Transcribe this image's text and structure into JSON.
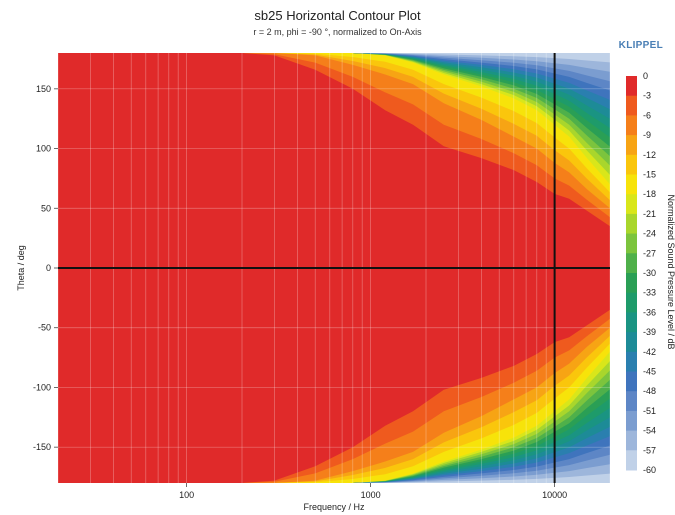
{
  "chart_data": {
    "type": "heatmap",
    "title": "sb25 Horizontal Contour Plot",
    "subtitle": "r = 2 m, phi = -90 °, normalized to On-Axis",
    "brand": "KLIPPEL",
    "xlabel": "Frequency / Hz",
    "ylabel": "Theta / deg",
    "colorbar_label": "Normalized Sound Pressure Level / dB",
    "x_scale": "log",
    "xlim": [
      20,
      20000
    ],
    "ylim": [
      -180,
      180
    ],
    "x_ticks": [
      100,
      1000,
      10000
    ],
    "y_ticks": [
      150,
      100,
      50,
      0,
      -50,
      -100,
      -150
    ],
    "reference_lines": {
      "horizontal_deg": 0,
      "vertical_hz": 10000
    },
    "levels": [
      0,
      -3,
      -6,
      -9,
      -12,
      -15,
      -18,
      -21,
      -24,
      -27,
      -30,
      -33,
      -36,
      -39,
      -42,
      -45,
      -48,
      -51,
      -54,
      -57,
      -60
    ],
    "level_colors": [
      "#e02a2a",
      "#ef5a1e",
      "#f57f1a",
      "#f7a414",
      "#fac60c",
      "#f7e30a",
      "#d9e61a",
      "#a9d62c",
      "#7cc43d",
      "#4fb04a",
      "#2a9f55",
      "#1e9b6a",
      "#1a9482",
      "#1d8b97",
      "#2a7faf",
      "#3f74bd",
      "#5d86c6",
      "#7b9dd0",
      "#9db6db",
      "#c0d1e8",
      "#dfe7f2"
    ],
    "beamwidth_contours": {
      "frequency_hz": [
        200,
        300,
        500,
        800,
        1200,
        1700,
        2500,
        4000,
        6000,
        8000,
        10000,
        12000,
        15000,
        20000
      ],
      "theta_at_-3dB": [
        180,
        178,
        166,
        150,
        132,
        120,
        102,
        92,
        82,
        72,
        62,
        58,
        48,
        35
      ],
      "theta_at_-9dB": [
        180,
        180,
        178,
        170,
        162,
        154,
        138,
        124,
        110,
        100,
        88,
        80,
        66,
        50
      ],
      "theta_at_-18dB": [
        180,
        180,
        180,
        180,
        178,
        172,
        162,
        152,
        142,
        132,
        120,
        110,
        92,
        70
      ]
    }
  }
}
